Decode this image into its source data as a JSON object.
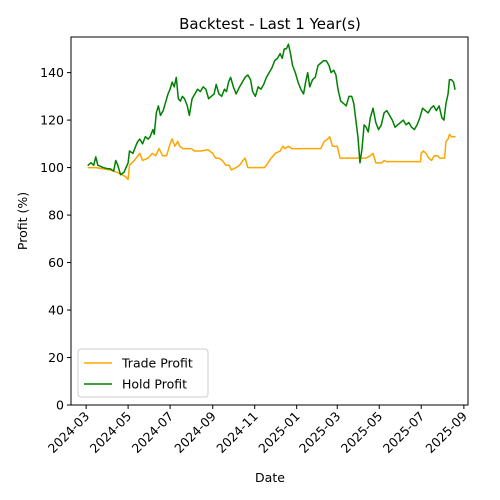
{
  "chart_data": {
    "type": "line",
    "title": "Backtest - Last 1 Year(s)",
    "xlabel": "Date",
    "ylabel": "Profit (%)",
    "xlim": [
      "2024-02-08",
      "2025-09-07"
    ],
    "ylim": [
      0,
      155
    ],
    "y_ticks": [
      0,
      20,
      40,
      60,
      80,
      100,
      120,
      140
    ],
    "x_ticks": [
      "2024-03",
      "2024-05",
      "2024-07",
      "2024-09",
      "2024-11",
      "2025-01",
      "2025-03",
      "2025-05",
      "2025-07",
      "2025-09"
    ],
    "x_tick_dates": [
      "2024-03-01",
      "2024-05-01",
      "2024-07-01",
      "2024-09-01",
      "2024-11-01",
      "2025-01-01",
      "2025-03-01",
      "2025-05-01",
      "2025-07-01",
      "2025-09-01"
    ],
    "legend_position": "lower-left",
    "grid": false,
    "series": [
      {
        "name": "Trade Profit",
        "color": "#ffa500",
        "points": [
          [
            "2024-03-04",
            100
          ],
          [
            "2024-03-15",
            100
          ],
          [
            "2024-03-25",
            99.5
          ],
          [
            "2024-04-05",
            99
          ],
          [
            "2024-04-15",
            98
          ],
          [
            "2024-04-22",
            97
          ],
          [
            "2024-04-28",
            96
          ],
          [
            "2024-05-01",
            95
          ],
          [
            "2024-05-03",
            101
          ],
          [
            "2024-05-10",
            103
          ],
          [
            "2024-05-18",
            106
          ],
          [
            "2024-05-22",
            103
          ],
          [
            "2024-05-30",
            104
          ],
          [
            "2024-06-05",
            106
          ],
          [
            "2024-06-10",
            105
          ],
          [
            "2024-06-15",
            108
          ],
          [
            "2024-06-20",
            105
          ],
          [
            "2024-06-26",
            105
          ],
          [
            "2024-07-01",
            110
          ],
          [
            "2024-07-04",
            112
          ],
          [
            "2024-07-08",
            109
          ],
          [
            "2024-07-12",
            111
          ],
          [
            "2024-07-15",
            109
          ],
          [
            "2024-07-20",
            108
          ],
          [
            "2024-08-01",
            108
          ],
          [
            "2024-08-05",
            107
          ],
          [
            "2024-08-15",
            107
          ],
          [
            "2024-08-25",
            107.5
          ],
          [
            "2024-09-01",
            106
          ],
          [
            "2024-09-05",
            104
          ],
          [
            "2024-09-10",
            104
          ],
          [
            "2024-09-15",
            103
          ],
          [
            "2024-09-20",
            101
          ],
          [
            "2024-09-25",
            101
          ],
          [
            "2024-09-28",
            99
          ],
          [
            "2024-10-05",
            100
          ],
          [
            "2024-10-10",
            101
          ],
          [
            "2024-10-15",
            103
          ],
          [
            "2024-10-18",
            104
          ],
          [
            "2024-10-22",
            100
          ],
          [
            "2024-11-01",
            100
          ],
          [
            "2024-11-15",
            100
          ],
          [
            "2024-11-18",
            101
          ],
          [
            "2024-11-25",
            104
          ],
          [
            "2024-12-01",
            106
          ],
          [
            "2024-12-08",
            107
          ],
          [
            "2024-12-12",
            109
          ],
          [
            "2024-12-15",
            108
          ],
          [
            "2024-12-20",
            109
          ],
          [
            "2024-12-25",
            108
          ],
          [
            "2025-01-05",
            108
          ],
          [
            "2025-01-20",
            108
          ],
          [
            "2025-02-05",
            108
          ],
          [
            "2025-02-10",
            111
          ],
          [
            "2025-02-15",
            112
          ],
          [
            "2025-02-18",
            113
          ],
          [
            "2025-02-22",
            109
          ],
          [
            "2025-03-01",
            109
          ],
          [
            "2025-03-05",
            104
          ],
          [
            "2025-03-20",
            104
          ],
          [
            "2025-04-01",
            104
          ],
          [
            "2025-04-12",
            104
          ],
          [
            "2025-04-18",
            105
          ],
          [
            "2025-04-22",
            106
          ],
          [
            "2025-04-26",
            102
          ],
          [
            "2025-05-05",
            102
          ],
          [
            "2025-05-08",
            103
          ],
          [
            "2025-05-12",
            102.5
          ],
          [
            "2025-05-25",
            102.5
          ],
          [
            "2025-06-15",
            102.5
          ],
          [
            "2025-06-30",
            102.5
          ],
          [
            "2025-07-01",
            106
          ],
          [
            "2025-07-04",
            107
          ],
          [
            "2025-07-08",
            106
          ],
          [
            "2025-07-12",
            104
          ],
          [
            "2025-07-16",
            103
          ],
          [
            "2025-07-20",
            105
          ],
          [
            "2025-07-25",
            105
          ],
          [
            "2025-07-28",
            104
          ],
          [
            "2025-08-04",
            104
          ],
          [
            "2025-08-06",
            111
          ],
          [
            "2025-08-09",
            112
          ],
          [
            "2025-08-11",
            114
          ],
          [
            "2025-08-14",
            113
          ],
          [
            "2025-08-19",
            113
          ]
        ]
      },
      {
        "name": "Hold Profit",
        "color": "#008000",
        "points": [
          [
            "2024-03-04",
            101
          ],
          [
            "2024-03-08",
            102
          ],
          [
            "2024-03-12",
            101
          ],
          [
            "2024-03-15",
            104.5
          ],
          [
            "2024-03-18",
            101
          ],
          [
            "2024-03-22",
            100.5
          ],
          [
            "2024-03-26",
            100
          ],
          [
            "2024-04-01",
            99.5
          ],
          [
            "2024-04-05",
            99.5
          ],
          [
            "2024-04-10",
            98.5
          ],
          [
            "2024-04-13",
            103
          ],
          [
            "2024-04-16",
            101
          ],
          [
            "2024-04-20",
            97
          ],
          [
            "2024-04-25",
            98
          ],
          [
            "2024-04-28",
            100
          ],
          [
            "2024-05-01",
            102
          ],
          [
            "2024-05-03",
            107
          ],
          [
            "2024-05-08",
            106
          ],
          [
            "2024-05-12",
            109
          ],
          [
            "2024-05-15",
            111
          ],
          [
            "2024-05-18",
            112
          ],
          [
            "2024-05-22",
            110
          ],
          [
            "2024-05-26",
            113
          ],
          [
            "2024-05-30",
            112
          ],
          [
            "2024-06-02",
            113
          ],
          [
            "2024-06-06",
            116
          ],
          [
            "2024-06-08",
            114
          ],
          [
            "2024-06-11",
            123
          ],
          [
            "2024-06-14",
            126
          ],
          [
            "2024-06-17",
            122
          ],
          [
            "2024-06-21",
            124
          ],
          [
            "2024-06-25",
            128
          ],
          [
            "2024-06-28",
            131
          ],
          [
            "2024-07-01",
            133
          ],
          [
            "2024-07-04",
            136
          ],
          [
            "2024-07-07",
            134
          ],
          [
            "2024-07-10",
            138
          ],
          [
            "2024-07-13",
            129
          ],
          [
            "2024-07-16",
            128
          ],
          [
            "2024-07-19",
            130
          ],
          [
            "2024-07-22",
            129
          ],
          [
            "2024-07-26",
            126
          ],
          [
            "2024-07-29",
            122
          ],
          [
            "2024-08-02",
            129
          ],
          [
            "2024-08-06",
            131
          ],
          [
            "2024-08-10",
            133
          ],
          [
            "2024-08-14",
            132
          ],
          [
            "2024-08-18",
            134
          ],
          [
            "2024-08-22",
            133
          ],
          [
            "2024-08-26",
            129
          ],
          [
            "2024-08-30",
            130
          ],
          [
            "2024-09-03",
            131
          ],
          [
            "2024-09-06",
            135
          ],
          [
            "2024-09-10",
            131
          ],
          [
            "2024-09-14",
            130
          ],
          [
            "2024-09-18",
            133
          ],
          [
            "2024-09-21",
            132
          ],
          [
            "2024-09-24",
            136
          ],
          [
            "2024-09-27",
            138
          ],
          [
            "2024-10-01",
            134
          ],
          [
            "2024-10-05",
            131
          ],
          [
            "2024-10-10",
            134
          ],
          [
            "2024-10-14",
            136
          ],
          [
            "2024-10-18",
            138
          ],
          [
            "2024-10-22",
            139
          ],
          [
            "2024-10-26",
            137
          ],
          [
            "2024-10-29",
            132
          ],
          [
            "2024-11-02",
            130
          ],
          [
            "2024-11-06",
            134
          ],
          [
            "2024-11-10",
            133
          ],
          [
            "2024-11-14",
            135
          ],
          [
            "2024-11-18",
            138
          ],
          [
            "2024-11-22",
            140
          ],
          [
            "2024-11-26",
            142
          ],
          [
            "2024-11-30",
            145
          ],
          [
            "2024-12-04",
            146
          ],
          [
            "2024-12-08",
            148
          ],
          [
            "2024-12-11",
            146
          ],
          [
            "2024-12-14",
            150
          ],
          [
            "2024-12-17",
            150
          ],
          [
            "2024-12-20",
            152
          ],
          [
            "2024-12-23",
            148
          ],
          [
            "2024-12-26",
            143
          ],
          [
            "2024-12-30",
            140
          ],
          [
            "2025-01-03",
            136
          ],
          [
            "2025-01-07",
            133
          ],
          [
            "2025-01-11",
            131
          ],
          [
            "2025-01-14",
            136
          ],
          [
            "2025-01-17",
            140
          ],
          [
            "2025-01-20",
            134
          ],
          [
            "2025-01-24",
            137
          ],
          [
            "2025-01-28",
            138
          ],
          [
            "2025-02-01",
            143
          ],
          [
            "2025-02-05",
            144
          ],
          [
            "2025-02-09",
            145
          ],
          [
            "2025-02-13",
            145
          ],
          [
            "2025-02-17",
            143
          ],
          [
            "2025-02-20",
            140
          ],
          [
            "2025-02-24",
            141
          ],
          [
            "2025-02-27",
            139
          ],
          [
            "2025-03-02",
            133
          ],
          [
            "2025-03-06",
            128
          ],
          [
            "2025-03-10",
            127
          ],
          [
            "2025-03-14",
            126
          ],
          [
            "2025-03-18",
            130
          ],
          [
            "2025-03-22",
            130
          ],
          [
            "2025-03-25",
            127
          ],
          [
            "2025-03-28",
            120
          ],
          [
            "2025-03-31",
            113
          ],
          [
            "2025-04-03",
            102
          ],
          [
            "2025-04-06",
            108
          ],
          [
            "2025-04-09",
            118
          ],
          [
            "2025-04-12",
            117
          ],
          [
            "2025-04-15",
            115
          ],
          [
            "2025-04-18",
            121
          ],
          [
            "2025-04-22",
            125
          ],
          [
            "2025-04-26",
            119
          ],
          [
            "2025-04-30",
            116
          ],
          [
            "2025-05-04",
            118
          ],
          [
            "2025-05-08",
            123
          ],
          [
            "2025-05-12",
            124
          ],
          [
            "2025-05-16",
            122
          ],
          [
            "2025-05-20",
            120
          ],
          [
            "2025-05-24",
            117
          ],
          [
            "2025-05-28",
            118
          ],
          [
            "2025-06-01",
            119
          ],
          [
            "2025-06-05",
            120
          ],
          [
            "2025-06-09",
            118
          ],
          [
            "2025-06-13",
            119
          ],
          [
            "2025-06-17",
            117
          ],
          [
            "2025-06-21",
            116
          ],
          [
            "2025-06-25",
            118
          ],
          [
            "2025-06-29",
            121
          ],
          [
            "2025-07-03",
            125
          ],
          [
            "2025-07-07",
            124
          ],
          [
            "2025-07-11",
            123
          ],
          [
            "2025-07-15",
            125
          ],
          [
            "2025-07-19",
            126
          ],
          [
            "2025-07-23",
            124
          ],
          [
            "2025-07-27",
            126
          ],
          [
            "2025-07-31",
            121
          ],
          [
            "2025-08-03",
            120
          ],
          [
            "2025-08-06",
            127
          ],
          [
            "2025-08-09",
            131
          ],
          [
            "2025-08-11",
            137
          ],
          [
            "2025-08-14",
            137
          ],
          [
            "2025-08-17",
            136
          ],
          [
            "2025-08-19",
            133
          ]
        ]
      }
    ]
  }
}
